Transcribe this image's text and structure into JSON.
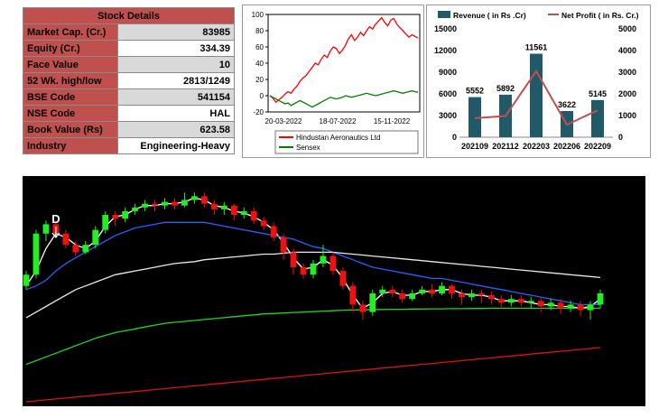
{
  "stock_details": {
    "title": "Stock Details",
    "rows": [
      {
        "label": "Market Cap. (Cr.)",
        "value": "83985"
      },
      {
        "label": "Equity (Cr.)",
        "value": "334.39"
      },
      {
        "label": "Face Value",
        "value": "10"
      },
      {
        "label": "52 Wk. high/low",
        "value": "2813/1249"
      },
      {
        "label": "BSE Code",
        "value": "541154"
      },
      {
        "label": "NSE Code",
        "value": "HAL"
      },
      {
        "label": "Book Value (Rs)",
        "value": "623.58"
      },
      {
        "label": "Industry",
        "value": "Engineering-Heavy"
      }
    ]
  },
  "chart_data": [
    {
      "type": "line",
      "x_ticks": [
        "20-03-2022",
        "18-07-2022",
        "15-11-2022"
      ],
      "ylim": [
        -20,
        100
      ],
      "y_ticks": [
        -20,
        0,
        20,
        40,
        60,
        80,
        100
      ],
      "series": [
        {
          "name": "Hindustan Aeronautics Ltd",
          "color": "#ff0000",
          "values": [
            0,
            -3,
            -8,
            -5,
            -2,
            2,
            5,
            3,
            8,
            12,
            18,
            22,
            25,
            30,
            35,
            40,
            38,
            45,
            50,
            47,
            55,
            60,
            58,
            52,
            56,
            62,
            70,
            75,
            68,
            72,
            78,
            74,
            80,
            85,
            82,
            88,
            92,
            96,
            90,
            86,
            93,
            95,
            88,
            84,
            80,
            76,
            72,
            75,
            73,
            71
          ]
        },
        {
          "name": "Sensex",
          "color": "#008000",
          "values": [
            0,
            -2,
            -4,
            -6,
            -8,
            -10,
            -9,
            -12,
            -10,
            -8,
            -6,
            -8,
            -10,
            -12,
            -14,
            -12,
            -10,
            -8,
            -6,
            -4,
            -2,
            -3,
            -4,
            -3,
            -2,
            0,
            -1,
            -2,
            -1,
            0,
            1,
            2,
            3,
            2,
            1,
            0,
            1,
            2,
            3,
            4,
            5,
            6,
            5,
            4,
            3,
            4,
            5,
            6,
            5,
            4
          ]
        }
      ]
    },
    {
      "type": "bar",
      "categories": [
        "202109",
        "202112",
        "202203",
        "202206",
        "202209"
      ],
      "series": [
        {
          "name": "Revenue ( in Rs .Cr)",
          "color": "#215968",
          "axis": "left",
          "values": [
            5552,
            5892,
            11561,
            3622,
            5145
          ]
        },
        {
          "name": "Net Profit ( in Rs. Cr.)",
          "color": "#c0504d",
          "axis": "right",
          "type": "line",
          "values": [
            880,
            980,
            3050,
            580,
            1240
          ]
        }
      ],
      "data_labels": [
        "5552",
        "5892",
        "11561",
        "3622",
        "5145"
      ],
      "y_left": {
        "lim": [
          0,
          15000
        ],
        "ticks": [
          0,
          3000,
          6000,
          9000,
          12000,
          15000
        ]
      },
      "y_right": {
        "lim": [
          0,
          5000
        ],
        "ticks": [
          0,
          1000,
          2000,
          3000,
          4000,
          5000
        ]
      }
    },
    {
      "type": "candlestick",
      "background": "#000000",
      "marker_label": "D",
      "candles": [
        [
          0.62,
          0.68,
          0.6,
          0.7
        ],
        [
          0.68,
          0.9,
          0.66,
          0.92
        ],
        [
          0.9,
          0.95,
          0.86,
          0.97
        ],
        [
          0.95,
          0.9,
          0.88,
          0.97
        ],
        [
          0.9,
          0.84,
          0.82,
          0.92
        ],
        [
          0.84,
          0.8,
          0.78,
          0.86
        ],
        [
          0.8,
          0.84,
          0.79,
          0.86
        ],
        [
          0.84,
          0.92,
          0.82,
          0.94
        ],
        [
          0.92,
          1.0,
          0.9,
          1.02
        ],
        [
          1.0,
          0.98,
          0.94,
          1.02
        ],
        [
          0.98,
          1.02,
          0.96,
          1.04
        ],
        [
          1.02,
          1.04,
          1.0,
          1.06
        ],
        [
          1.04,
          1.06,
          1.02,
          1.08
        ],
        [
          1.06,
          1.05,
          1.02,
          1.08
        ],
        [
          1.05,
          1.07,
          1.03,
          1.09
        ],
        [
          1.07,
          1.05,
          1.03,
          1.09
        ],
        [
          1.05,
          1.08,
          1.04,
          1.12
        ],
        [
          1.08,
          1.1,
          1.06,
          1.12
        ],
        [
          1.1,
          1.06,
          1.04,
          1.12
        ],
        [
          1.06,
          1.03,
          1.0,
          1.08
        ],
        [
          1.03,
          1.05,
          1.0,
          1.07
        ],
        [
          1.05,
          1.0,
          0.97,
          1.06
        ],
        [
          1.0,
          1.02,
          0.98,
          1.04
        ],
        [
          1.02,
          0.97,
          0.95,
          1.04
        ],
        [
          0.97,
          0.94,
          0.92,
          0.99
        ],
        [
          0.94,
          0.88,
          0.86,
          0.96
        ],
        [
          0.88,
          0.8,
          0.76,
          0.9
        ],
        [
          0.8,
          0.72,
          0.68,
          0.82
        ],
        [
          0.72,
          0.68,
          0.66,
          0.74
        ],
        [
          0.68,
          0.74,
          0.66,
          0.76
        ],
        [
          0.74,
          0.78,
          0.72,
          0.84
        ],
        [
          0.78,
          0.7,
          0.68,
          0.8
        ],
        [
          0.7,
          0.62,
          0.6,
          0.72
        ],
        [
          0.62,
          0.52,
          0.48,
          0.64
        ],
        [
          0.52,
          0.48,
          0.44,
          0.54
        ],
        [
          0.48,
          0.58,
          0.46,
          0.6
        ],
        [
          0.58,
          0.6,
          0.56,
          0.62
        ],
        [
          0.6,
          0.58,
          0.56,
          0.62
        ],
        [
          0.58,
          0.55,
          0.53,
          0.6
        ],
        [
          0.55,
          0.58,
          0.54,
          0.6
        ],
        [
          0.58,
          0.6,
          0.57,
          0.62
        ],
        [
          0.6,
          0.58,
          0.56,
          0.63
        ],
        [
          0.58,
          0.62,
          0.57,
          0.64
        ],
        [
          0.62,
          0.58,
          0.55,
          0.63
        ],
        [
          0.58,
          0.56,
          0.52,
          0.6
        ],
        [
          0.56,
          0.58,
          0.54,
          0.6
        ],
        [
          0.58,
          0.57,
          0.53,
          0.6
        ],
        [
          0.57,
          0.55,
          0.52,
          0.59
        ],
        [
          0.55,
          0.53,
          0.5,
          0.57
        ],
        [
          0.53,
          0.55,
          0.51,
          0.57
        ],
        [
          0.55,
          0.53,
          0.51,
          0.57
        ],
        [
          0.53,
          0.54,
          0.5,
          0.56
        ],
        [
          0.54,
          0.51,
          0.48,
          0.56
        ],
        [
          0.51,
          0.53,
          0.49,
          0.55
        ],
        [
          0.53,
          0.5,
          0.47,
          0.55
        ],
        [
          0.5,
          0.52,
          0.48,
          0.54
        ],
        [
          0.52,
          0.49,
          0.46,
          0.54
        ],
        [
          0.49,
          0.52,
          0.44,
          0.54
        ],
        [
          0.52,
          0.58,
          0.5,
          0.6
        ]
      ],
      "lines": [
        {
          "color": "#ffffff",
          "values": [
            0.62,
            0.7,
            0.82,
            0.9,
            0.88,
            0.84,
            0.82,
            0.86,
            0.94,
            0.99,
            1.0,
            1.03,
            1.05,
            1.05,
            1.06,
            1.06,
            1.07,
            1.09,
            1.08,
            1.05,
            1.04,
            1.02,
            1.01,
            0.99,
            0.96,
            0.92,
            0.85,
            0.77,
            0.71,
            0.72,
            0.76,
            0.73,
            0.66,
            0.57,
            0.5,
            0.53,
            0.58,
            0.59,
            0.57,
            0.57,
            0.59,
            0.59,
            0.6,
            0.6,
            0.58,
            0.57,
            0.57,
            0.56,
            0.54,
            0.54,
            0.54,
            0.53,
            0.52,
            0.52,
            0.51,
            0.51,
            0.5,
            0.51,
            0.55
          ]
        },
        {
          "color": "#1e64ff",
          "values": [
            0.6,
            0.62,
            0.65,
            0.7,
            0.74,
            0.77,
            0.8,
            0.83,
            0.86,
            0.89,
            0.91,
            0.93,
            0.94,
            0.95,
            0.96,
            0.96,
            0.96,
            0.96,
            0.96,
            0.95,
            0.94,
            0.93,
            0.92,
            0.91,
            0.9,
            0.89,
            0.88,
            0.87,
            0.85,
            0.83,
            0.82,
            0.8,
            0.78,
            0.76,
            0.74,
            0.72,
            0.71,
            0.7,
            0.69,
            0.68,
            0.67,
            0.66,
            0.66,
            0.65,
            0.64,
            0.63,
            0.62,
            0.61,
            0.6,
            0.59,
            0.58,
            0.57,
            0.56,
            0.55,
            0.54,
            0.53,
            0.52,
            0.52,
            0.52
          ]
        },
        {
          "color": "#e8e8e8",
          "values": [
            0.45,
            0.48,
            0.51,
            0.54,
            0.57,
            0.6,
            0.62,
            0.64,
            0.66,
            0.68,
            0.69,
            0.7,
            0.71,
            0.72,
            0.73,
            0.74,
            0.745,
            0.75,
            0.76,
            0.765,
            0.77,
            0.775,
            0.78,
            0.785,
            0.79,
            0.79,
            0.795,
            0.8,
            0.8,
            0.8,
            0.8,
            0.8,
            0.795,
            0.79,
            0.785,
            0.78,
            0.775,
            0.77,
            0.765,
            0.76,
            0.755,
            0.75,
            0.745,
            0.74,
            0.735,
            0.73,
            0.725,
            0.72,
            0.715,
            0.71,
            0.705,
            0.7,
            0.695,
            0.69,
            0.685,
            0.68,
            0.675,
            0.67,
            0.665
          ]
        },
        {
          "color": "#1fd51f",
          "values": [
            0.2,
            0.22,
            0.24,
            0.26,
            0.28,
            0.3,
            0.32,
            0.34,
            0.355,
            0.37,
            0.38,
            0.39,
            0.4,
            0.41,
            0.42,
            0.425,
            0.43,
            0.435,
            0.44,
            0.445,
            0.45,
            0.455,
            0.46,
            0.465,
            0.47,
            0.472,
            0.475,
            0.478,
            0.48,
            0.482,
            0.485,
            0.487,
            0.49,
            0.491,
            0.492,
            0.493,
            0.494,
            0.495,
            0.495,
            0.496,
            0.496,
            0.497,
            0.497,
            0.498,
            0.498,
            0.499,
            0.499,
            0.5,
            0.5,
            0.5,
            0.5,
            0.5,
            0.5,
            0.5,
            0.5,
            0.5,
            0.5,
            0.5,
            0.5
          ]
        },
        {
          "color": "#dd1111",
          "values": [
            0.0,
            0.005,
            0.01,
            0.015,
            0.02,
            0.025,
            0.03,
            0.035,
            0.04,
            0.045,
            0.05,
            0.055,
            0.06,
            0.065,
            0.07,
            0.075,
            0.08,
            0.085,
            0.09,
            0.095,
            0.1,
            0.105,
            0.11,
            0.115,
            0.12,
            0.125,
            0.13,
            0.135,
            0.14,
            0.145,
            0.15,
            0.155,
            0.16,
            0.165,
            0.17,
            0.175,
            0.18,
            0.185,
            0.19,
            0.195,
            0.2,
            0.205,
            0.21,
            0.215,
            0.22,
            0.225,
            0.23,
            0.235,
            0.24,
            0.245,
            0.25,
            0.255,
            0.26,
            0.265,
            0.27,
            0.275,
            0.28,
            0.285,
            0.29
          ]
        }
      ]
    }
  ]
}
